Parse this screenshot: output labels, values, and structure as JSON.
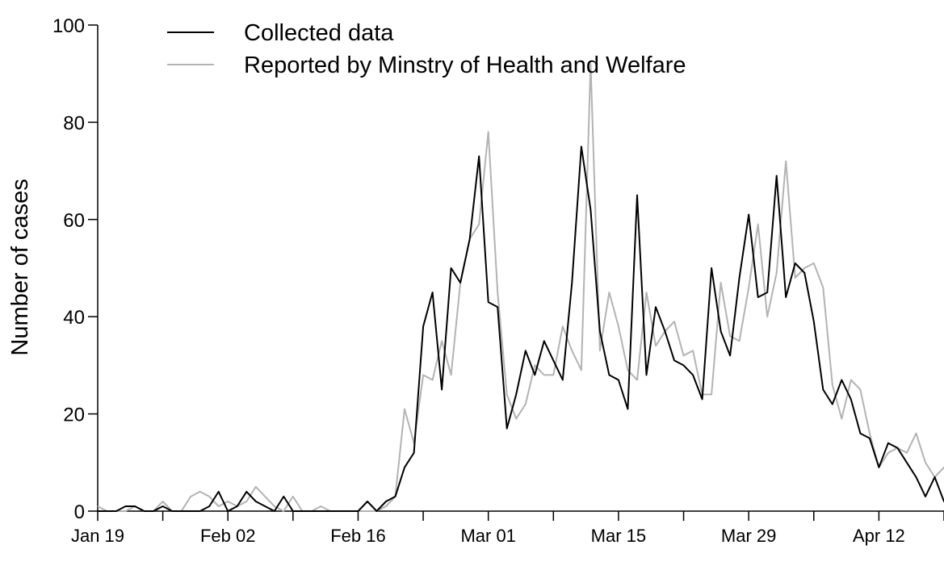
{
  "chart_data": {
    "type": "line",
    "title": "",
    "xlabel": "",
    "ylabel": "Number of cases",
    "ylim": [
      0,
      100
    ],
    "xlim": [
      "2020-01-19",
      "2020-04-19"
    ],
    "yticks": [
      0,
      20,
      40,
      60,
      80,
      100
    ],
    "xticks": [
      {
        "date": "2020-01-19",
        "label": "Jan 19"
      },
      {
        "date": "2020-02-02",
        "label": "Feb 02"
      },
      {
        "date": "2020-02-16",
        "label": "Feb 16"
      },
      {
        "date": "2020-03-01",
        "label": "Mar 01"
      },
      {
        "date": "2020-03-15",
        "label": "Mar 15"
      },
      {
        "date": "2020-03-29",
        "label": "Mar 29"
      },
      {
        "date": "2020-04-12",
        "label": "Apr 12"
      }
    ],
    "grid": false,
    "legend_position": "top-left",
    "start_date": "2020-01-19",
    "series": [
      {
        "name": "Collected data",
        "color": "#000000",
        "values": [
          0,
          0,
          0,
          1,
          1,
          0,
          0,
          1,
          0,
          0,
          0,
          0,
          1,
          4,
          0,
          1,
          4,
          2,
          1,
          0,
          3,
          0,
          0,
          0,
          0,
          0,
          0,
          0,
          0,
          2,
          0,
          2,
          3,
          9,
          12,
          38,
          45,
          25,
          50,
          47,
          56,
          73,
          43,
          42,
          17,
          24,
          33,
          28,
          35,
          31,
          27,
          47,
          75,
          62,
          37,
          28,
          27,
          21,
          65,
          28,
          42,
          37,
          31,
          30,
          28,
          23,
          50,
          37,
          32,
          48,
          61,
          44,
          45,
          69,
          44,
          51,
          49,
          39,
          25,
          22,
          27,
          23,
          16,
          15,
          9,
          14,
          13,
          10,
          7,
          3,
          7,
          2,
          2,
          0
        ]
      },
      {
        "name": "Reported by Minstry of Health and Welfare",
        "color": "#b3b3b3",
        "values": [
          1,
          0,
          0,
          0,
          1,
          0,
          0,
          2,
          0,
          0,
          3,
          4,
          3,
          1,
          2,
          1,
          2,
          5,
          3,
          1,
          0,
          3,
          0,
          0,
          1,
          0,
          0,
          0,
          0,
          0,
          0,
          1,
          3,
          21,
          14,
          28,
          27,
          35,
          28,
          47,
          56,
          59,
          78,
          45,
          24,
          19,
          22,
          30,
          28,
          28,
          38,
          33,
          29,
          92,
          33,
          45,
          38,
          29,
          27,
          45,
          34,
          37,
          39,
          32,
          33,
          24,
          24,
          47,
          36,
          35,
          46,
          59,
          40,
          49,
          72,
          48,
          50,
          51,
          46,
          26,
          19,
          27,
          25,
          16,
          9,
          12,
          13,
          12,
          16,
          10,
          7,
          9,
          3,
          6
        ]
      }
    ]
  }
}
